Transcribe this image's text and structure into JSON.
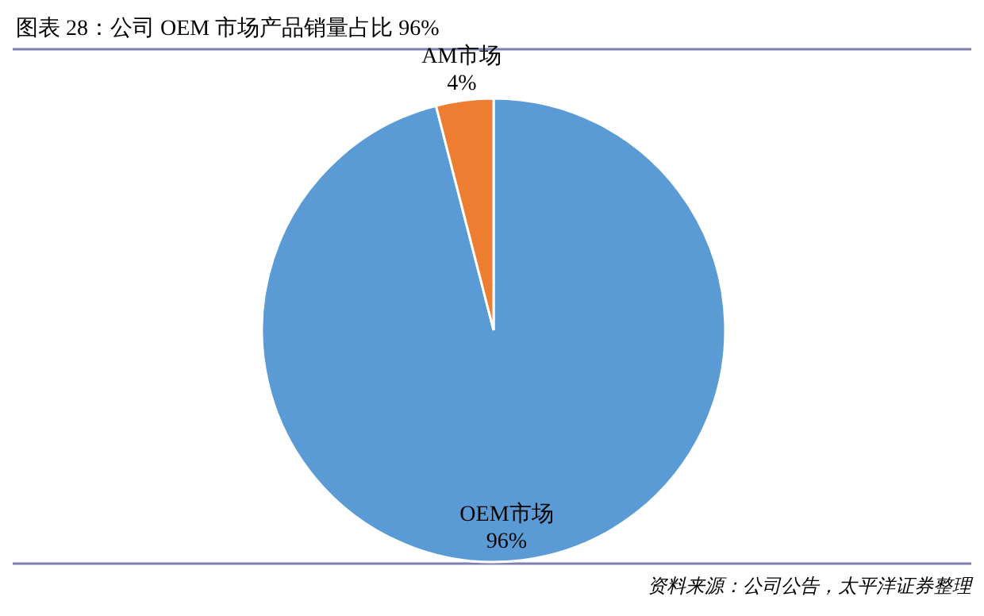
{
  "chart_data": {
    "type": "pie",
    "title": "图表 28：公司 OEM 市场产品销量占比 96%",
    "categories": [
      "OEM市场",
      "AM市场"
    ],
    "values": [
      96,
      4
    ],
    "value_labels": [
      "96%",
      "4%"
    ],
    "colors": [
      "#5b9bd5",
      "#ed7d31"
    ],
    "annotations": [
      "资料来源：公司公告，太平洋证券整理"
    ]
  }
}
